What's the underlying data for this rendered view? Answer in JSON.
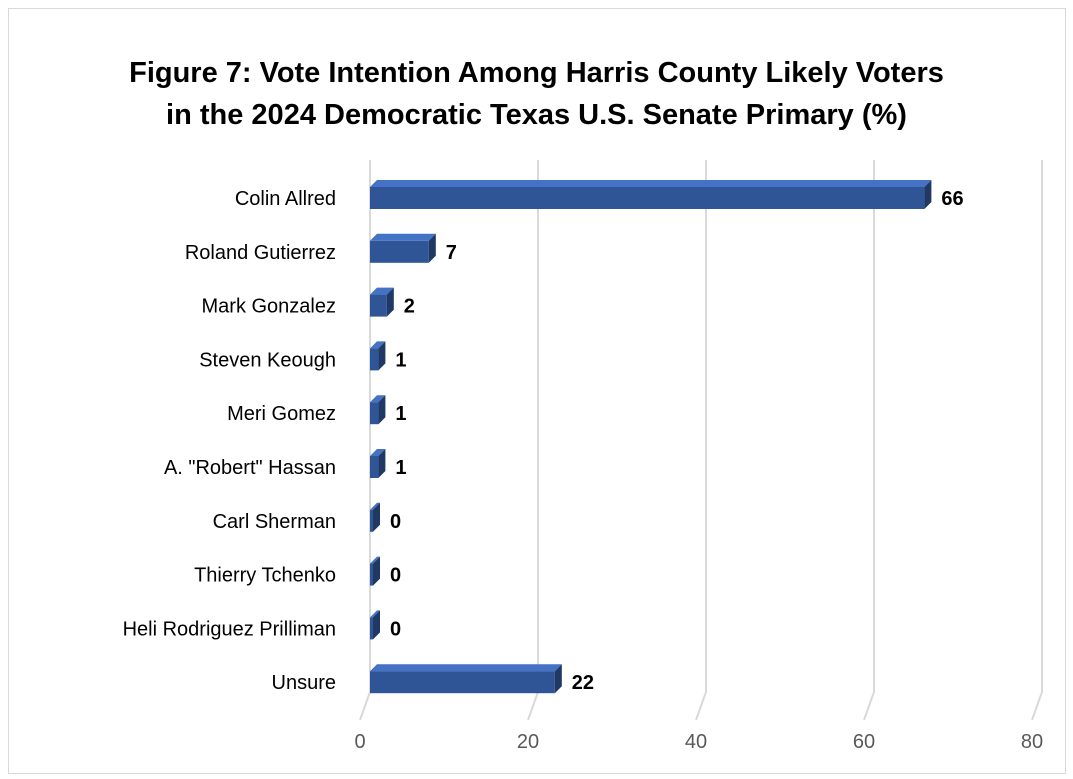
{
  "chart_data": {
    "type": "bar",
    "orientation": "horizontal",
    "title_lines": [
      "Figure 7: Vote Intention Among Harris County Likely Voters",
      "in the 2024 Democratic Texas U.S. Senate Primary (%)"
    ],
    "categories": [
      "Colin Allred",
      "Roland Gutierrez",
      "Mark Gonzalez",
      "Steven Keough",
      "Meri Gomez",
      "A. \"Robert\" Hassan",
      "Carl Sherman",
      "Thierry Tchenko",
      "Heli Rodriguez Prilliman",
      "Unsure"
    ],
    "values": [
      66,
      7,
      2,
      1,
      1,
      1,
      0,
      0,
      0,
      22
    ],
    "value_labels": [
      "66",
      "7",
      "2",
      "1",
      "1",
      "1",
      "0",
      "0",
      "0",
      "22"
    ],
    "x_ticks": [
      "0",
      "20",
      "40",
      "60",
      "80"
    ],
    "xlim": [
      0,
      80
    ],
    "grid": true,
    "legend": "none",
    "bar_style": "3d",
    "colors": {
      "bar_front": "#2f5597",
      "bar_side": "#1f3864",
      "bar_top": "#4472c4",
      "grid": "#d9d9d9",
      "tick_text": "#595959"
    }
  }
}
